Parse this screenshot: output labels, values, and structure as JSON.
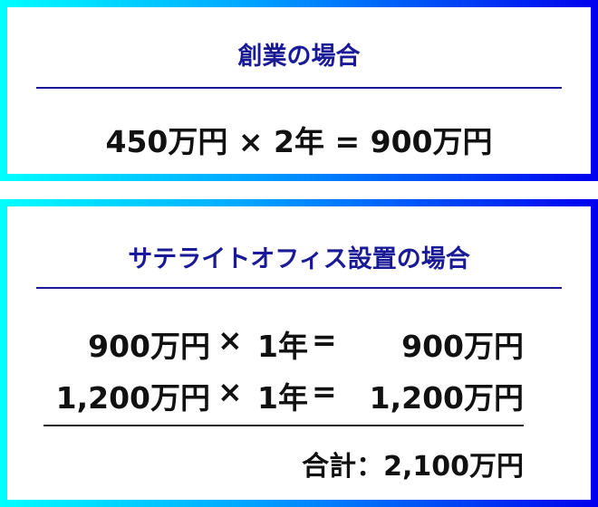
{
  "gradient": {
    "start": "#00ffff",
    "end": "#0000ee"
  },
  "accent": "#1a1a96",
  "founding": {
    "title": "創業の場合",
    "equation": "450万円 × 2年 = 900万円"
  },
  "satellite": {
    "title": "サテライトオフィス設置の場合",
    "rows": [
      {
        "amount": "900万円",
        "times": "×",
        "years": "1年",
        "equals": "=",
        "result": "900万円"
      },
      {
        "amount": "1,200万円",
        "times": "×",
        "years": "1年",
        "equals": "=",
        "result": "1,200万円"
      }
    ],
    "total": "合計：2,100万円"
  }
}
